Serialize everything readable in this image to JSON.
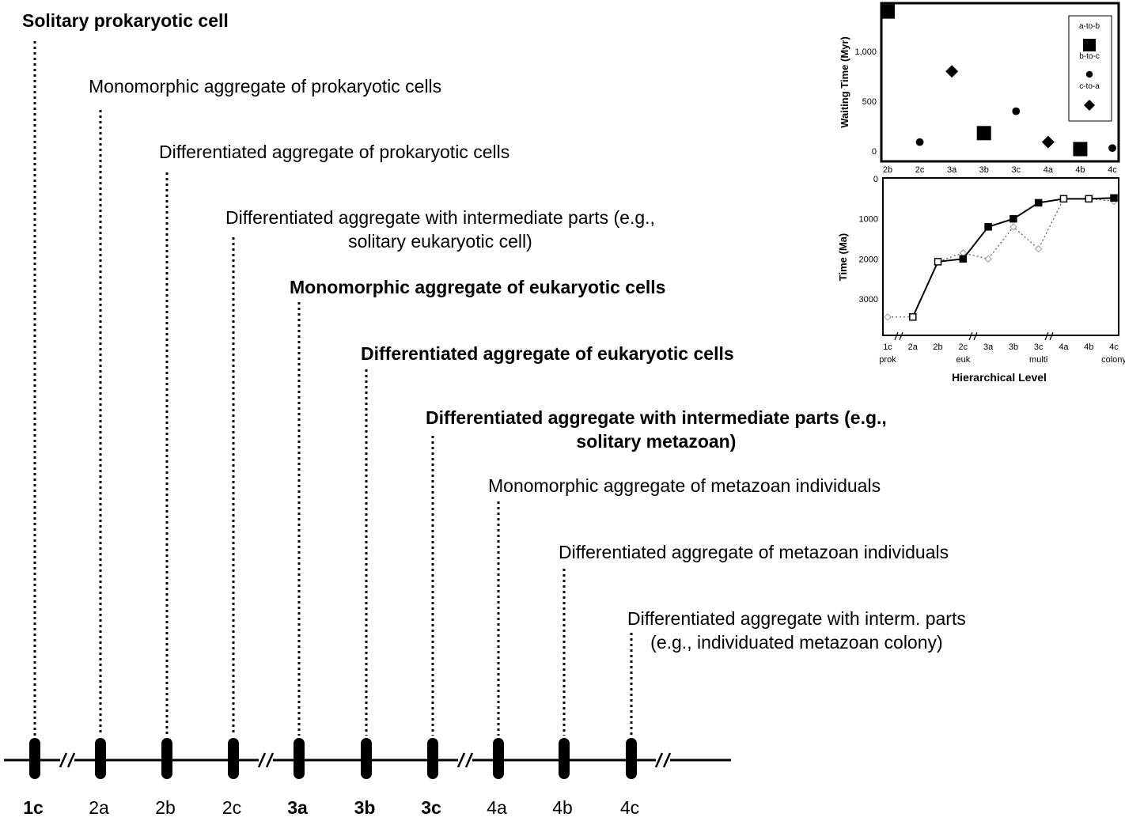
{
  "levels": [
    {
      "code": "1c",
      "bold": true,
      "lines": [
        "Solitary prokaryotic cell"
      ]
    },
    {
      "code": "2a",
      "bold": false,
      "lines": [
        "Monomorphic aggregate of prokaryotic cells"
      ]
    },
    {
      "code": "2b",
      "bold": false,
      "lines": [
        "Differentiated aggregate of prokaryotic cells"
      ]
    },
    {
      "code": "2c",
      "bold": false,
      "lines": [
        "Differentiated aggregate with intermediate parts (e.g.,",
        "solitary eukaryotic cell)"
      ]
    },
    {
      "code": "3a",
      "bold": true,
      "lines": [
        "Monomorphic aggregate of eukaryotic cells"
      ]
    },
    {
      "code": "3b",
      "bold": true,
      "lines": [
        "Differentiated aggregate of eukaryotic cells"
      ]
    },
    {
      "code": "3c",
      "bold": true,
      "lines": [
        "Differentiated aggregate with intermediate parts (e.g.,",
        "solitary metazoan)"
      ]
    },
    {
      "code": "4a",
      "bold": false,
      "lines": [
        "Monomorphic aggregate of metazoan individuals"
      ]
    },
    {
      "code": "4b",
      "bold": false,
      "lines": [
        "Differentiated aggregate of metazoan individuals"
      ]
    },
    {
      "code": "4c",
      "bold": false,
      "lines": [
        "Differentiated aggregate with interm. parts",
        "(e.g., individuated metazoan colony)"
      ]
    }
  ],
  "chart_data": [
    {
      "type": "scatter",
      "ylabel": "Waiting Time (Myr)",
      "categories": [
        "2b",
        "2c",
        "3a",
        "3b",
        "3c",
        "4a",
        "4b",
        "4c"
      ],
      "y_ticks": [
        "0",
        "500",
        "1,000"
      ],
      "ylim": [
        0,
        1450
      ],
      "legend": [
        "a-to-b",
        "b-to-c",
        "c-to-a"
      ],
      "legend_position": "top-right",
      "series": [
        {
          "name": "a-to-b",
          "marker": "square",
          "points": [
            {
              "x": "2b",
              "y": 1400
            },
            {
              "x": "3b",
              "y": 180
            },
            {
              "x": "4b",
              "y": 20
            }
          ]
        },
        {
          "name": "b-to-c",
          "marker": "circle",
          "points": [
            {
              "x": "2c",
              "y": 90
            },
            {
              "x": "3c",
              "y": 400
            },
            {
              "x": "4c",
              "y": 30
            }
          ]
        },
        {
          "name": "c-to-a",
          "marker": "diamond",
          "points": [
            {
              "x": "3a",
              "y": 800
            },
            {
              "x": "4a",
              "y": 90
            }
          ]
        }
      ]
    },
    {
      "type": "line",
      "xlabel": "Hierarchical Level",
      "ylabel": "Time (Ma)",
      "categories": [
        "1c",
        "2a",
        "2b",
        "2c",
        "3a",
        "3b",
        "3c",
        "4a",
        "4b",
        "4c"
      ],
      "group_labels": [
        {
          "text": "prok",
          "at": "1c"
        },
        {
          "text": "euk",
          "at": "2c"
        },
        {
          "text": "multi",
          "at": "3c"
        },
        {
          "text": "colony",
          "at": "4c"
        }
      ],
      "y_ticks": [
        "0",
        "1000",
        "2000",
        "3000"
      ],
      "ylim": [
        0,
        3500
      ],
      "y_inverted": true,
      "series": [
        {
          "style": "solid",
          "marker": "filled-square",
          "points": [
            {
              "x": "2a",
              "y": 3450
            },
            {
              "x": "2b",
              "y": 2070
            },
            {
              "x": "2c",
              "y": 2000
            },
            {
              "x": "3a",
              "y": 1200
            },
            {
              "x": "3b",
              "y": 1000
            },
            {
              "x": "3c",
              "y": 600
            },
            {
              "x": "4a",
              "y": 500
            },
            {
              "x": "4b",
              "y": 500
            },
            {
              "x": "4c",
              "y": 480
            }
          ]
        },
        {
          "style": "dotted",
          "marker": "open-diamond",
          "points": [
            {
              "x": "1c",
              "y": 3450
            },
            {
              "x": "2a",
              "y": 3450
            },
            {
              "x": "2b",
              "y": 2070
            },
            {
              "x": "2c",
              "y": 1850
            },
            {
              "x": "3a",
              "y": 2000
            },
            {
              "x": "3b",
              "y": 1200
            },
            {
              "x": "3c",
              "y": 1750
            },
            {
              "x": "4a",
              "y": 500
            },
            {
              "x": "4b",
              "y": 500
            },
            {
              "x": "4c",
              "y": 560
            }
          ]
        }
      ]
    }
  ]
}
